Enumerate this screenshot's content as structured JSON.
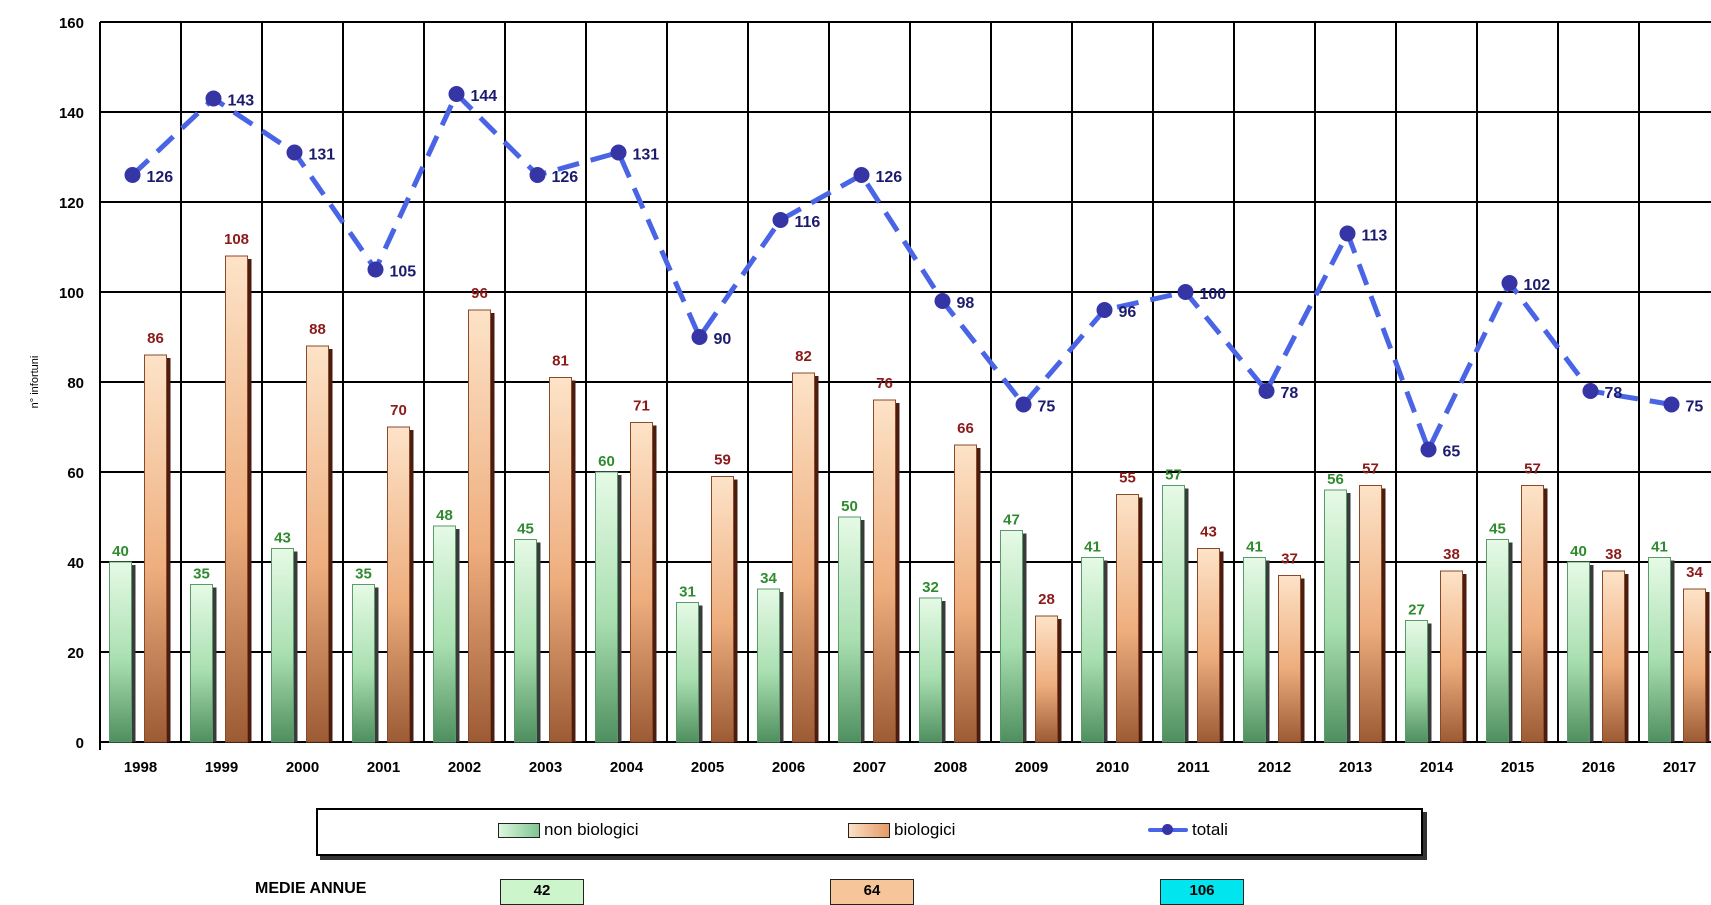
{
  "chart_data": {
    "type": "bar",
    "ylabel": "n° infortuni",
    "ylim": [
      0,
      160
    ],
    "yticks": [
      0,
      20,
      40,
      60,
      80,
      100,
      120,
      140,
      160
    ],
    "grid": true,
    "categories": [
      "1998",
      "1999",
      "2000",
      "2001",
      "2002",
      "2003",
      "2004",
      "2005",
      "2006",
      "2007",
      "2008",
      "2009",
      "2010",
      "2011",
      "2012",
      "2013",
      "2014",
      "2015",
      "2016",
      "2017"
    ],
    "series": [
      {
        "name": "non biologici",
        "type": "bar",
        "color": "#8fd19e",
        "values": [
          40,
          35,
          43,
          35,
          48,
          45,
          60,
          31,
          34,
          50,
          32,
          47,
          41,
          57,
          41,
          56,
          27,
          45,
          40,
          41
        ]
      },
      {
        "name": "biologici",
        "type": "bar",
        "color": "#e8a070",
        "values": [
          86,
          108,
          88,
          70,
          96,
          81,
          71,
          59,
          82,
          76,
          66,
          28,
          55,
          43,
          37,
          57,
          38,
          57,
          38,
          34
        ]
      },
      {
        "name": "totali",
        "type": "line",
        "color": "#4a64e6",
        "values": [
          126,
          143,
          131,
          105,
          144,
          126,
          131,
          90,
          116,
          126,
          98,
          75,
          96,
          100,
          78,
          113,
          65,
          102,
          78,
          75
        ]
      }
    ],
    "legend_position": "bottom"
  },
  "averages": {
    "label": "MEDIE ANNUE",
    "non_biologici": "42",
    "biologici": "64",
    "totali": "106"
  },
  "colors": {
    "green_label": "#2e8b2e",
    "red_label": "#8b1a1a",
    "line_label": "#1c1c6e",
    "avg_cyan": "#00e5ee",
    "avg_green": "#ccf5cc",
    "avg_orange": "#f7c59a"
  }
}
